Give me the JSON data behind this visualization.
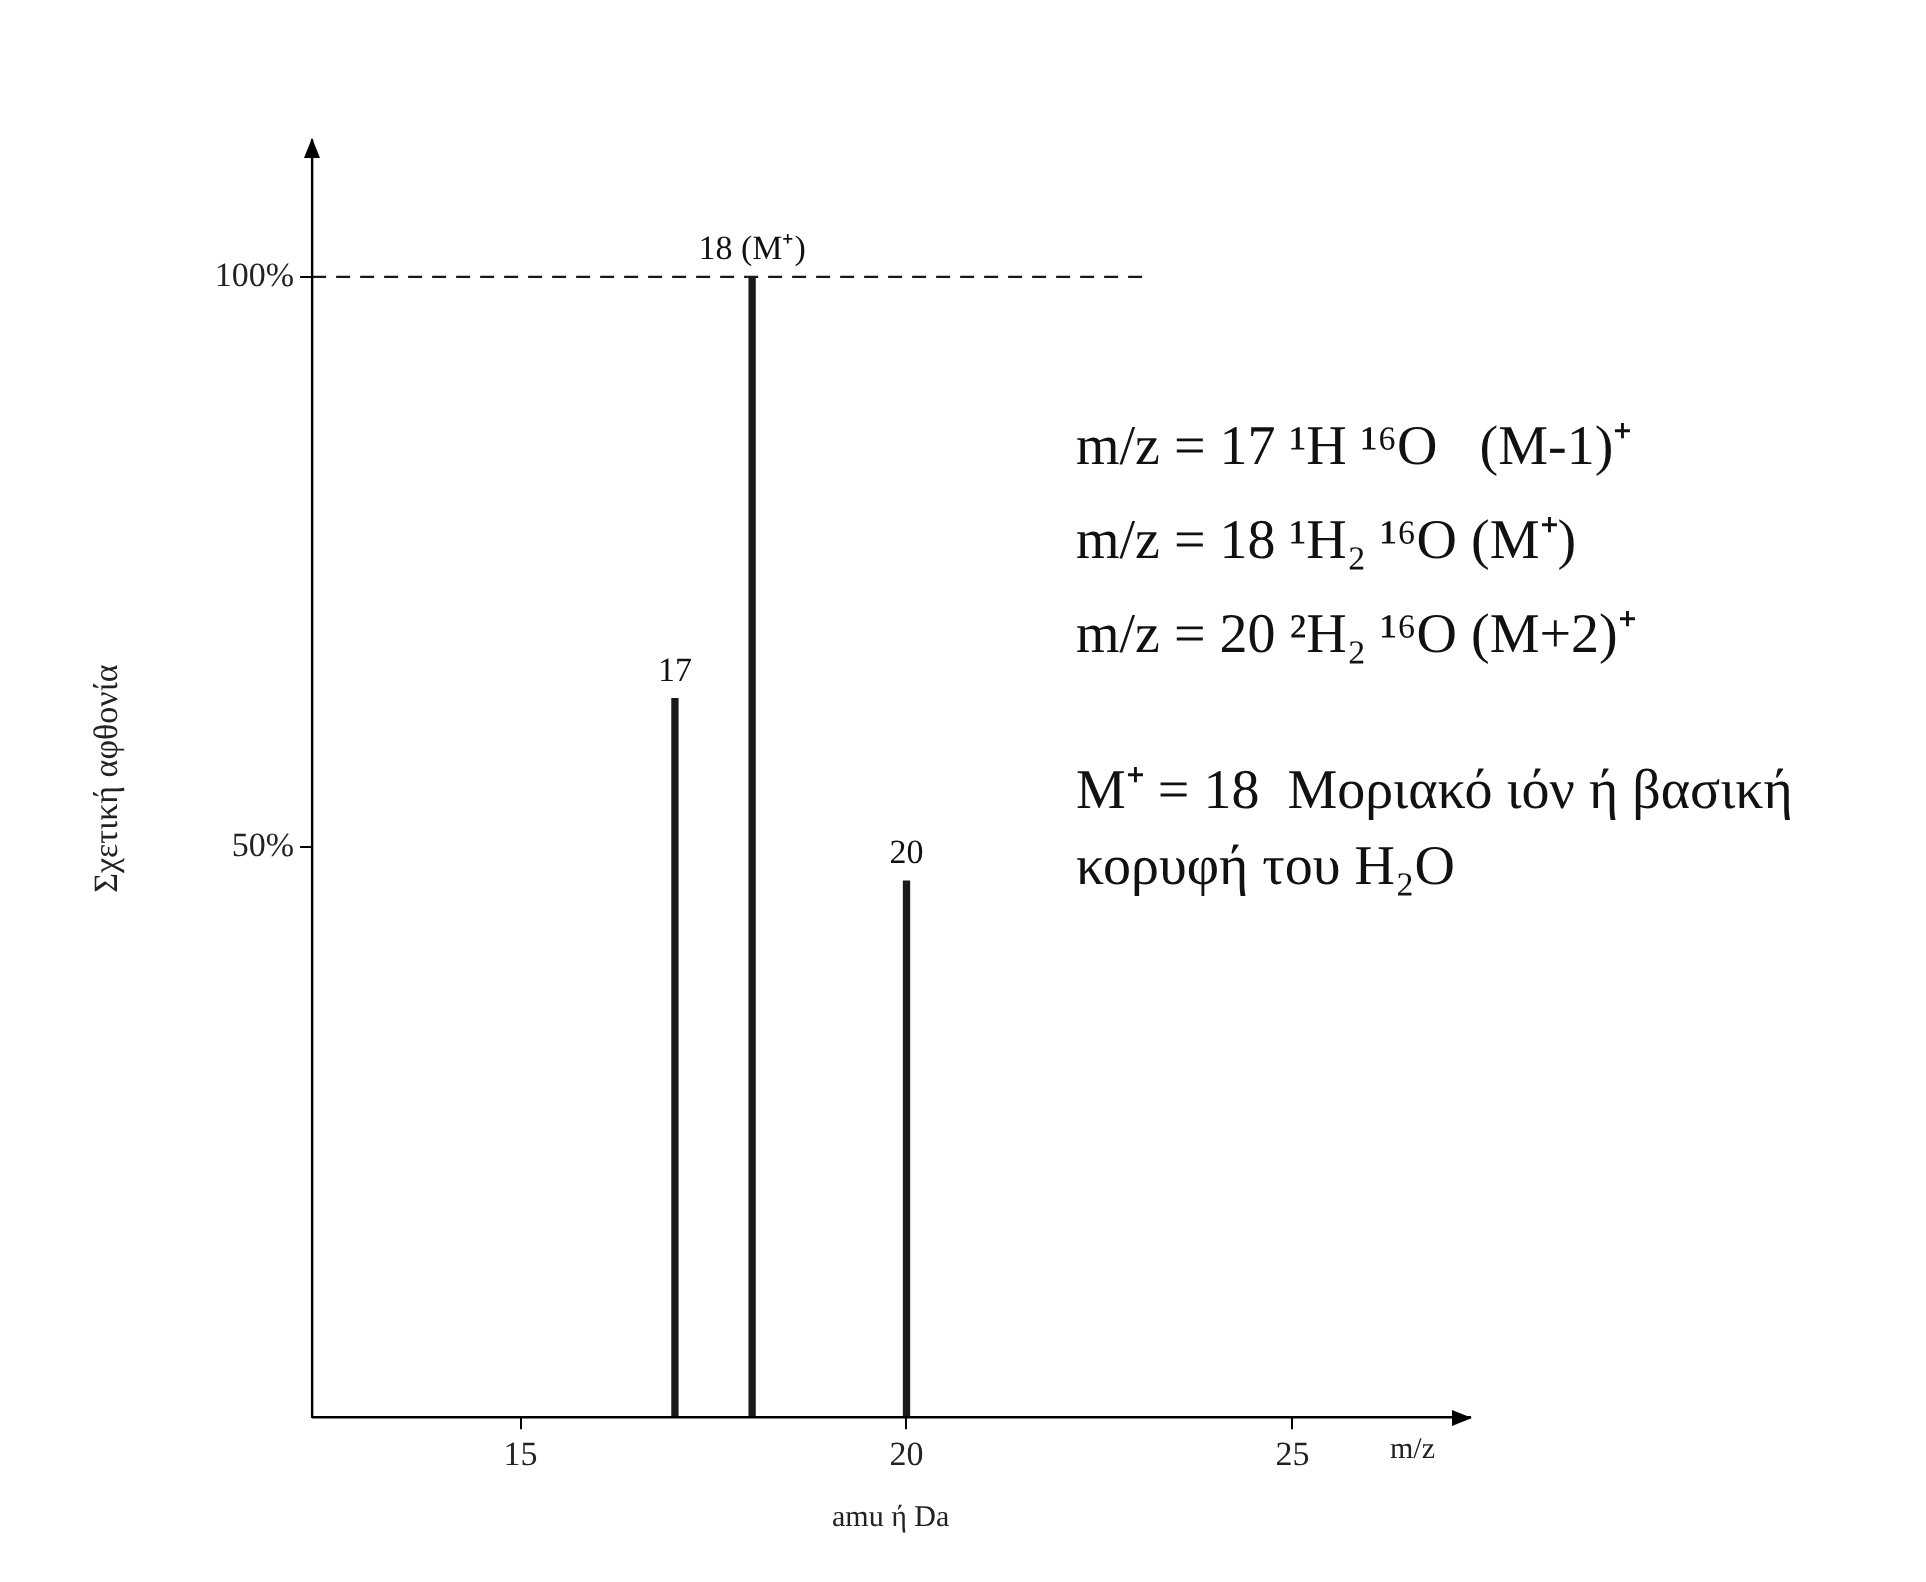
{
  "chart_data": {
    "type": "bar",
    "x": [
      17,
      18,
      20
    ],
    "values": [
      63,
      100,
      47
    ],
    "color": "#1a1a1a",
    "xlim": [
      12.3,
      27.3
    ],
    "xticks": [
      15,
      20,
      25
    ],
    "ylim": [
      0,
      112
    ],
    "yticks": [
      {
        "value": 50,
        "label": "50%"
      },
      {
        "value": 100,
        "label": "100%"
      }
    ],
    "xlabel": "amu ή Da",
    "ylabel": "Σχετική αφθονία",
    "grid": false,
    "legend": false,
    "ref_lines": [
      {
        "axis": "y",
        "value": 100,
        "label": null,
        "line_style": "dashed",
        "color": "#1a1a1a"
      }
    ],
    "annotations": [
      {
        "text": "17",
        "x": 17,
        "y": 63
      },
      {
        "text": "18 (M⁺)",
        "x": 18,
        "y": 100
      },
      {
        "text": "20",
        "x": 20,
        "y": 47
      },
      "m/z",
      "m/z = 17 ¹H ¹⁶O   (M-1)⁺",
      "m/z = 18 ¹H₂ ¹⁶O (M⁺)",
      "m/z = 20 ²H₂ ¹⁶O (M+2)⁺",
      "M⁺ = 18  Μοριακό ιόν ή βασική κορυφή του H₂O"
    ]
  }
}
